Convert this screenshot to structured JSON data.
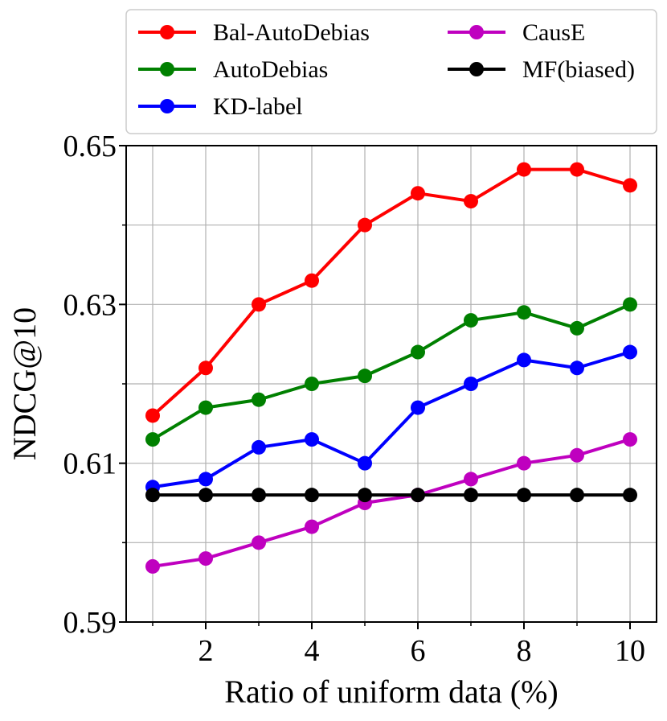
{
  "chart_data": {
    "type": "line",
    "title": "",
    "xlabel": "Ratio of uniform data (%)",
    "ylabel": "NDCG@10",
    "x": [
      1,
      2,
      3,
      4,
      5,
      6,
      7,
      8,
      9,
      10
    ],
    "xlim": [
      0.5,
      10.5
    ],
    "ylim": [
      0.59,
      0.65
    ],
    "x_major_ticks": [
      2,
      4,
      6,
      8,
      10
    ],
    "x_minor_ticks": [
      1,
      3,
      5,
      7,
      9
    ],
    "x_tick_labels": [
      "2",
      "4",
      "6",
      "8",
      "10"
    ],
    "y_major_ticks": [
      0.59,
      0.61,
      0.63,
      0.65
    ],
    "y_minor_ticks": [
      0.6,
      0.62,
      0.64
    ],
    "y_tick_labels": [
      "0.59",
      "0.61",
      "0.63",
      "0.65"
    ],
    "grid": true,
    "legend_position": "top",
    "series": [
      {
        "name": "Bal-AutoDebias",
        "color": "#ff0000",
        "values": [
          0.616,
          0.622,
          0.63,
          0.633,
          0.64,
          0.644,
          0.643,
          0.647,
          0.647,
          0.645
        ]
      },
      {
        "name": "AutoDebias",
        "color": "#008000",
        "values": [
          0.613,
          0.617,
          0.618,
          0.62,
          0.621,
          0.624,
          0.628,
          0.629,
          0.627,
          0.63
        ]
      },
      {
        "name": "KD-label",
        "color": "#0000ff",
        "values": [
          0.607,
          0.608,
          0.612,
          0.613,
          0.61,
          0.617,
          0.62,
          0.623,
          0.622,
          0.624
        ]
      },
      {
        "name": "CausE",
        "color": "#bf00bf",
        "values": [
          0.597,
          0.598,
          0.6,
          0.602,
          0.605,
          0.606,
          0.608,
          0.61,
          0.611,
          0.613
        ]
      },
      {
        "name": "MF(biased)",
        "color": "#000000",
        "values": [
          0.606,
          0.606,
          0.606,
          0.606,
          0.606,
          0.606,
          0.606,
          0.606,
          0.606,
          0.606
        ]
      }
    ]
  }
}
